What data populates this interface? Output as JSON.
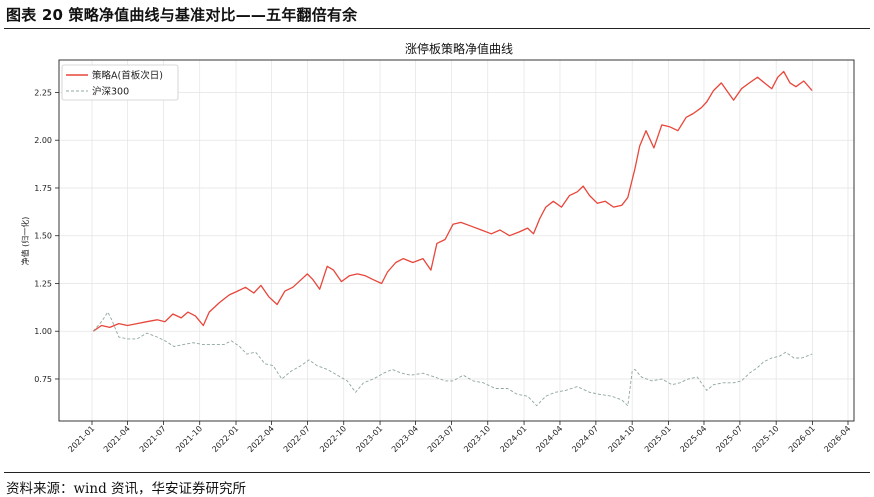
{
  "header": {
    "title": "图表 20 策略净值曲线与基准对比——五年翻倍有余"
  },
  "footer": {
    "source": "资料来源：wind 资讯，华安证券研究所"
  },
  "chart_data": {
    "type": "line",
    "title": "涨停板策略净值曲线",
    "xlabel": "",
    "ylabel": "净值 (归一化)",
    "ylim": [
      0.53,
      2.42
    ],
    "y_ticks": [
      0.75,
      1.0,
      1.25,
      1.5,
      1.75,
      2.0,
      2.25
    ],
    "y_tick_labels": [
      "0.75",
      "1.00",
      "1.25",
      "1.50",
      "1.75",
      "2.00",
      "2.25"
    ],
    "x_tick_labels": [
      "2021-01",
      "2021-04",
      "2021-07",
      "2021-10",
      "2022-01",
      "2022-04",
      "2022-07",
      "2022-10",
      "2023-01",
      "2023-04",
      "2023-07",
      "2023-10",
      "2024-01",
      "2024-04",
      "2024-07",
      "2024-10",
      "2025-01",
      "2025-04",
      "2025-07",
      "2025-10",
      "2026-01",
      "2026-04"
    ],
    "grid": true,
    "legend_position": "top-left",
    "series": [
      {
        "name": "策略A(首板次日)",
        "color": "#e8463a",
        "style": "solid",
        "points": [
          [
            "2021-01-04",
            1.0
          ],
          [
            "2021-01-25",
            1.03
          ],
          [
            "2021-02-15",
            1.02
          ],
          [
            "2021-03-10",
            1.04
          ],
          [
            "2021-04-01",
            1.03
          ],
          [
            "2021-04-25",
            1.04
          ],
          [
            "2021-05-20",
            1.05
          ],
          [
            "2021-06-15",
            1.06
          ],
          [
            "2021-07-05",
            1.05
          ],
          [
            "2021-07-25",
            1.09
          ],
          [
            "2021-08-15",
            1.07
          ],
          [
            "2021-09-01",
            1.1
          ],
          [
            "2021-09-20",
            1.08
          ],
          [
            "2021-10-10",
            1.03
          ],
          [
            "2021-10-25",
            1.1
          ],
          [
            "2021-11-20",
            1.15
          ],
          [
            "2021-12-15",
            1.19
          ],
          [
            "2022-01-05",
            1.21
          ],
          [
            "2022-01-25",
            1.23
          ],
          [
            "2022-02-15",
            1.2
          ],
          [
            "2022-03-05",
            1.24
          ],
          [
            "2022-03-25",
            1.18
          ],
          [
            "2022-04-15",
            1.14
          ],
          [
            "2022-05-05",
            1.21
          ],
          [
            "2022-05-25",
            1.23
          ],
          [
            "2022-06-15",
            1.27
          ],
          [
            "2022-07-01",
            1.3
          ],
          [
            "2022-07-15",
            1.27
          ],
          [
            "2022-08-01",
            1.22
          ],
          [
            "2022-08-20",
            1.34
          ],
          [
            "2022-09-05",
            1.32
          ],
          [
            "2022-09-25",
            1.26
          ],
          [
            "2022-10-15",
            1.29
          ],
          [
            "2022-11-05",
            1.3
          ],
          [
            "2022-11-25",
            1.29
          ],
          [
            "2022-12-15",
            1.27
          ],
          [
            "2023-01-05",
            1.25
          ],
          [
            "2023-01-20",
            1.31
          ],
          [
            "2023-02-10",
            1.36
          ],
          [
            "2023-03-01",
            1.38
          ],
          [
            "2023-03-25",
            1.36
          ],
          [
            "2023-04-20",
            1.38
          ],
          [
            "2023-05-10",
            1.32
          ],
          [
            "2023-05-25",
            1.46
          ],
          [
            "2023-06-15",
            1.48
          ],
          [
            "2023-07-05",
            1.56
          ],
          [
            "2023-07-25",
            1.57
          ],
          [
            "2023-08-20",
            1.55
          ],
          [
            "2023-09-15",
            1.53
          ],
          [
            "2023-10-10",
            1.51
          ],
          [
            "2023-11-01",
            1.53
          ],
          [
            "2023-11-25",
            1.5
          ],
          [
            "2023-12-20",
            1.52
          ],
          [
            "2024-01-10",
            1.54
          ],
          [
            "2024-01-25",
            1.51
          ],
          [
            "2024-02-10",
            1.59
          ],
          [
            "2024-02-25",
            1.65
          ],
          [
            "2024-03-15",
            1.68
          ],
          [
            "2024-04-05",
            1.65
          ],
          [
            "2024-04-25",
            1.71
          ],
          [
            "2024-05-15",
            1.73
          ],
          [
            "2024-05-30",
            1.76
          ],
          [
            "2024-06-15",
            1.71
          ],
          [
            "2024-07-05",
            1.67
          ],
          [
            "2024-07-25",
            1.68
          ],
          [
            "2024-08-15",
            1.65
          ],
          [
            "2024-09-05",
            1.66
          ],
          [
            "2024-09-20",
            1.7
          ],
          [
            "2024-10-08",
            1.85
          ],
          [
            "2024-10-20",
            1.97
          ],
          [
            "2024-11-05",
            2.05
          ],
          [
            "2024-11-25",
            1.96
          ],
          [
            "2024-12-15",
            2.08
          ],
          [
            "2025-01-05",
            2.07
          ],
          [
            "2025-01-25",
            2.05
          ],
          [
            "2025-02-15",
            2.12
          ],
          [
            "2025-03-05",
            2.14
          ],
          [
            "2025-03-25",
            2.17
          ],
          [
            "2025-04-08",
            2.2
          ],
          [
            "2025-04-25",
            2.26
          ],
          [
            "2025-05-15",
            2.3
          ],
          [
            "2025-06-01",
            2.25
          ],
          [
            "2025-06-15",
            2.21
          ],
          [
            "2025-07-05",
            2.27
          ],
          [
            "2025-07-25",
            2.3
          ],
          [
            "2025-08-15",
            2.33
          ],
          [
            "2025-09-01",
            2.3
          ],
          [
            "2025-09-20",
            2.27
          ],
          [
            "2025-10-05",
            2.33
          ],
          [
            "2025-10-20",
            2.36
          ],
          [
            "2025-11-05",
            2.3
          ],
          [
            "2025-11-20",
            2.28
          ],
          [
            "2025-12-10",
            2.31
          ],
          [
            "2025-12-31",
            2.26
          ]
        ]
      },
      {
        "name": "沪深300",
        "color": "#8fa79b",
        "style": "dashed",
        "points": [
          [
            "2021-01-04",
            1.0
          ],
          [
            "2021-01-25",
            1.05
          ],
          [
            "2021-02-10",
            1.1
          ],
          [
            "2021-02-20",
            1.06
          ],
          [
            "2021-03-10",
            0.97
          ],
          [
            "2021-04-01",
            0.96
          ],
          [
            "2021-04-25",
            0.96
          ],
          [
            "2021-05-20",
            0.99
          ],
          [
            "2021-06-15",
            0.97
          ],
          [
            "2021-07-05",
            0.95
          ],
          [
            "2021-07-28",
            0.92
          ],
          [
            "2021-08-20",
            0.93
          ],
          [
            "2021-09-15",
            0.94
          ],
          [
            "2021-10-10",
            0.93
          ],
          [
            "2021-11-05",
            0.93
          ],
          [
            "2021-12-01",
            0.93
          ],
          [
            "2021-12-20",
            0.95
          ],
          [
            "2022-01-10",
            0.92
          ],
          [
            "2022-01-28",
            0.88
          ],
          [
            "2022-02-20",
            0.89
          ],
          [
            "2022-03-15",
            0.83
          ],
          [
            "2022-04-05",
            0.82
          ],
          [
            "2022-04-27",
            0.75
          ],
          [
            "2022-05-20",
            0.79
          ],
          [
            "2022-06-15",
            0.82
          ],
          [
            "2022-07-05",
            0.85
          ],
          [
            "2022-07-25",
            0.82
          ],
          [
            "2022-08-20",
            0.8
          ],
          [
            "2022-09-15",
            0.77
          ],
          [
            "2022-10-10",
            0.74
          ],
          [
            "2022-10-31",
            0.68
          ],
          [
            "2022-11-20",
            0.73
          ],
          [
            "2022-12-15",
            0.75
          ],
          [
            "2023-01-10",
            0.78
          ],
          [
            "2023-02-01",
            0.8
          ],
          [
            "2023-02-25",
            0.78
          ],
          [
            "2023-03-20",
            0.77
          ],
          [
            "2023-04-20",
            0.78
          ],
          [
            "2023-05-20",
            0.76
          ],
          [
            "2023-06-15",
            0.74
          ],
          [
            "2023-07-05",
            0.74
          ],
          [
            "2023-07-31",
            0.77
          ],
          [
            "2023-08-25",
            0.74
          ],
          [
            "2023-09-20",
            0.73
          ],
          [
            "2023-10-20",
            0.7
          ],
          [
            "2023-11-20",
            0.7
          ],
          [
            "2023-12-15",
            0.67
          ],
          [
            "2024-01-10",
            0.66
          ],
          [
            "2024-02-02",
            0.61
          ],
          [
            "2024-02-25",
            0.66
          ],
          [
            "2024-03-20",
            0.68
          ],
          [
            "2024-04-15",
            0.69
          ],
          [
            "2024-05-15",
            0.71
          ],
          [
            "2024-06-15",
            0.68
          ],
          [
            "2024-07-10",
            0.67
          ],
          [
            "2024-08-10",
            0.66
          ],
          [
            "2024-09-05",
            0.64
          ],
          [
            "2024-09-20",
            0.61
          ],
          [
            "2024-10-01",
            0.79
          ],
          [
            "2024-10-08",
            0.8
          ],
          [
            "2024-10-25",
            0.76
          ],
          [
            "2024-11-20",
            0.74
          ],
          [
            "2024-12-15",
            0.75
          ],
          [
            "2025-01-10",
            0.72
          ],
          [
            "2025-01-30",
            0.73
          ],
          [
            "2025-02-20",
            0.75
          ],
          [
            "2025-03-15",
            0.76
          ],
          [
            "2025-04-08",
            0.69
          ],
          [
            "2025-04-25",
            0.72
          ],
          [
            "2025-05-20",
            0.73
          ],
          [
            "2025-06-15",
            0.73
          ],
          [
            "2025-07-05",
            0.74
          ],
          [
            "2025-07-25",
            0.78
          ],
          [
            "2025-08-15",
            0.81
          ],
          [
            "2025-08-30",
            0.84
          ],
          [
            "2025-09-20",
            0.86
          ],
          [
            "2025-10-10",
            0.87
          ],
          [
            "2025-10-25",
            0.89
          ],
          [
            "2025-11-15",
            0.86
          ],
          [
            "2025-12-05",
            0.86
          ],
          [
            "2025-12-31",
            0.88
          ]
        ]
      }
    ]
  }
}
